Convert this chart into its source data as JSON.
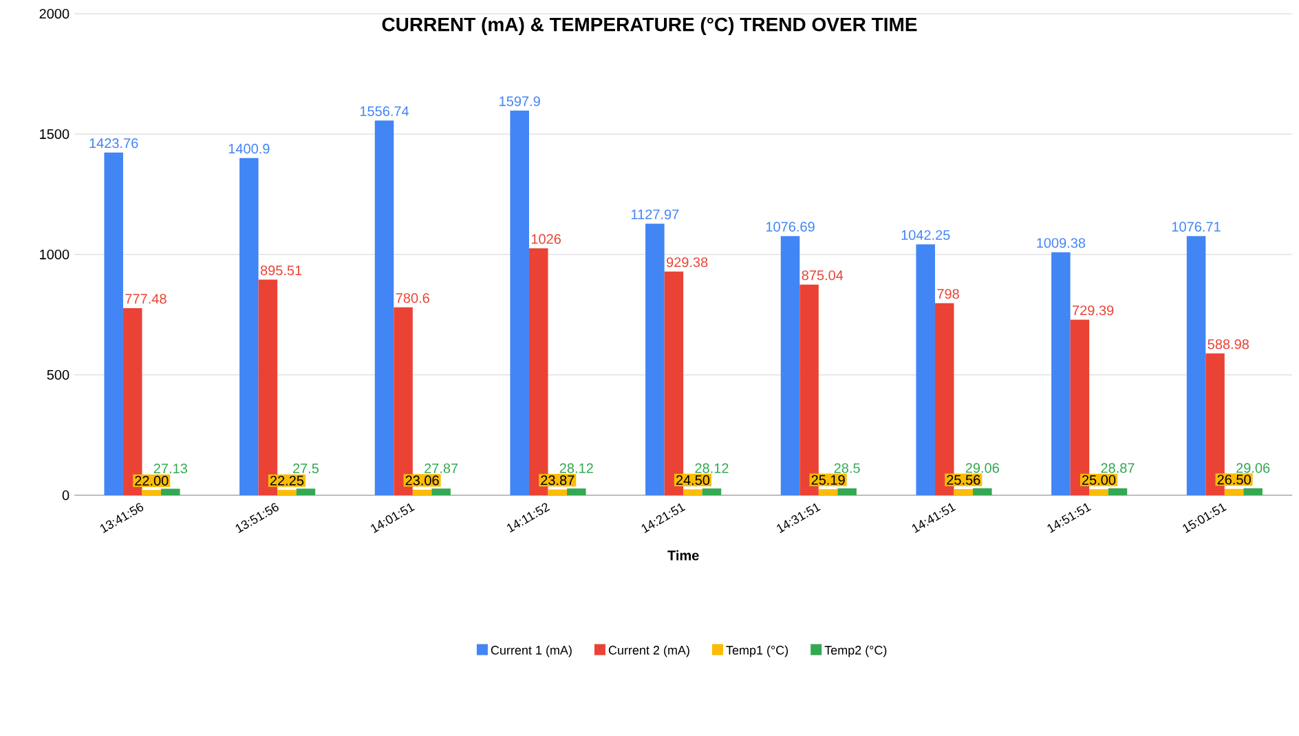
{
  "chart_data": {
    "type": "bar",
    "title": "CURRENT (mA) & TEMPERATURE (°C) TREND OVER TIME",
    "xlabel": "Time",
    "categories": [
      "13:41:56",
      "13:51:56",
      "14:01:51",
      "14:11:52",
      "14:21:51",
      "14:31:51",
      "14:41:51",
      "14:51:51",
      "15:01:51"
    ],
    "series": [
      {
        "name": "Current 1 (mA)",
        "color": "#4285f4",
        "values": [
          1423.76,
          1400.9,
          1556.74,
          1597.9,
          1127.97,
          1076.69,
          1042.25,
          1009.38,
          1076.71
        ],
        "value_labels": [
          "1423.76",
          "1400.9",
          "1556.74",
          "1597.9",
          "1127.97",
          "1076.69",
          "1042.25",
          "1009.38",
          "1076.71"
        ]
      },
      {
        "name": "Current 2 (mA)",
        "color": "#ea4335",
        "values": [
          777.48,
          895.51,
          780.6,
          1026,
          929.38,
          875.04,
          798,
          729.39,
          588.98
        ],
        "value_labels": [
          "777.48",
          "895.51",
          "780.6",
          "1026",
          "929.38",
          "875.04",
          "798",
          "729.39",
          "588.98"
        ]
      },
      {
        "name": "Temp1 (°C)",
        "color": "#fbbc04",
        "values": [
          22.0,
          22.25,
          23.06,
          23.87,
          24.5,
          25.19,
          25.56,
          25.0,
          26.5
        ],
        "value_labels": [
          "22.00",
          "22.25",
          "23.06",
          "23.87",
          "24.50",
          "25.19",
          "25.56",
          "25.00",
          "26.50"
        ]
      },
      {
        "name": "Temp2 (°C)",
        "color": "#34a853",
        "values": [
          27.13,
          27.5,
          27.87,
          28.12,
          28.12,
          28.5,
          29.06,
          28.87,
          29.06
        ],
        "value_labels": [
          "27.13",
          "27.5",
          "27.87",
          "28.12",
          "28.12",
          "28.5",
          "29.06",
          "28.87",
          "29.06"
        ]
      }
    ],
    "ylim": [
      0,
      2000
    ],
    "yticks": [
      0,
      500,
      1000,
      1500,
      2000
    ],
    "grid": "y",
    "legend": "bottom"
  }
}
